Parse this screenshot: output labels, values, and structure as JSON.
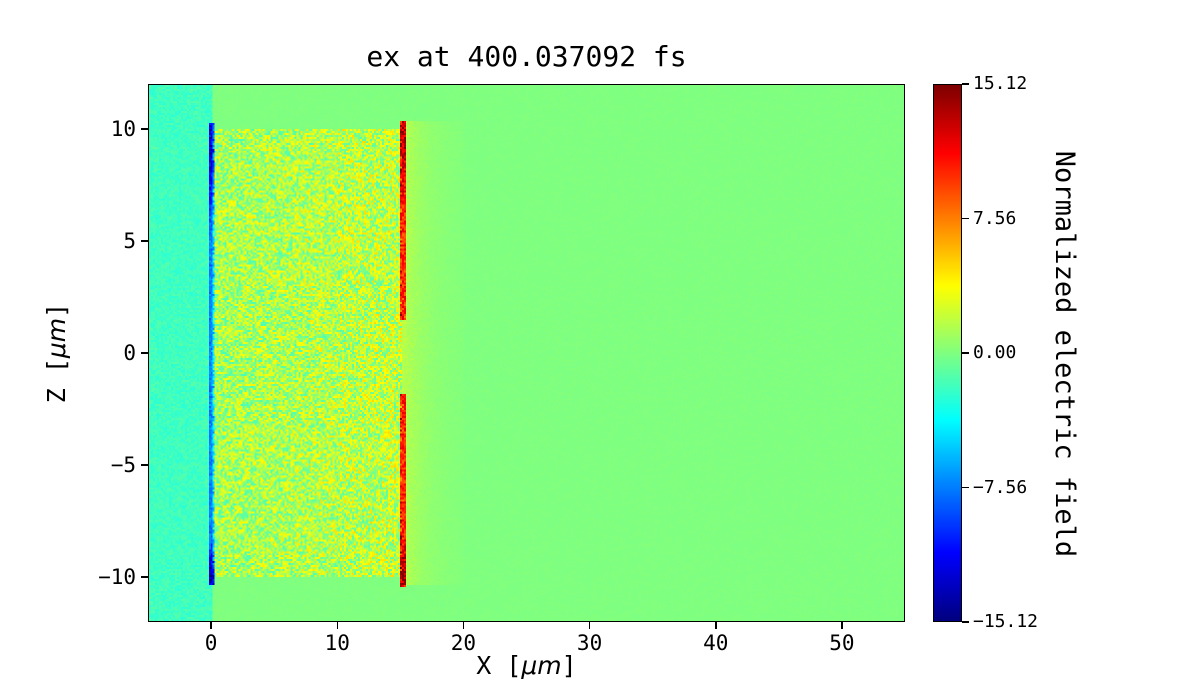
{
  "chart_data": {
    "type": "heatmap",
    "title": "ex at 400.037092 fs",
    "xlabel": {
      "prefix": "X [",
      "math": "μm",
      "suffix": "]"
    },
    "ylabel": {
      "prefix": "Z [",
      "math": "μm",
      "suffix": "]"
    },
    "x_range": [
      -5,
      55
    ],
    "z_range": [
      -12,
      12
    ],
    "x_ticks": [
      0,
      10,
      20,
      30,
      40,
      50
    ],
    "x_tick_labels": [
      "0",
      "10",
      "20",
      "30",
      "40",
      "50"
    ],
    "z_ticks": [
      10,
      5,
      0,
      -5,
      -10
    ],
    "z_tick_labels": [
      "10",
      "5",
      "0",
      "−5",
      "−10"
    ],
    "grid": false,
    "colorbar": {
      "label": "Normalized electric field",
      "colormap": "jet",
      "vmin": -15.12,
      "vmax": 15.12,
      "ticks": [
        15.12,
        7.56,
        0.0,
        -7.56,
        -15.12
      ],
      "tick_labels": [
        "15.12",
        "7.56",
        "0.00",
        "−7.56",
        "−15.12"
      ]
    },
    "field": {
      "background_value": 0,
      "texture_noise": 0.25,
      "left_margin": {
        "x_max": 0,
        "value": -1.9,
        "noise": 1.4
      },
      "plasma_noise_region": {
        "x": [
          0,
          15.1
        ],
        "z": [
          -10,
          10
        ],
        "mean": 1.1,
        "noise_amp": 3.1,
        "x_gradient": 0.8
      },
      "rear_halo": {
        "x": [
          15.1,
          20
        ],
        "z_abs_max": 10.4,
        "amp": 1.8,
        "decay_um": 1.8
      },
      "front_sheath_stripe": {
        "x": [
          -0.2,
          0.25
        ],
        "z": [
          -10.4,
          10.3
        ],
        "value": -5.5,
        "top_boost": -5.0,
        "top_center": 9.0,
        "top_width": 2.5,
        "bottom_boost": -6.5,
        "bottom_center": -10,
        "bottom_width": 1.2
      },
      "rear_sheath_stripe": {
        "x": [
          14.95,
          15.45
        ],
        "z_segments": [
          [
            1.5,
            10.35
          ],
          [
            -10.45,
            -1.85
          ]
        ],
        "value": 8.5,
        "top_boost": 3.5,
        "top_center": 9.5,
        "top_width": 1.8,
        "bottom_boost": 4.0,
        "bottom_center": -10,
        "bottom_width": 1.2
      }
    }
  }
}
